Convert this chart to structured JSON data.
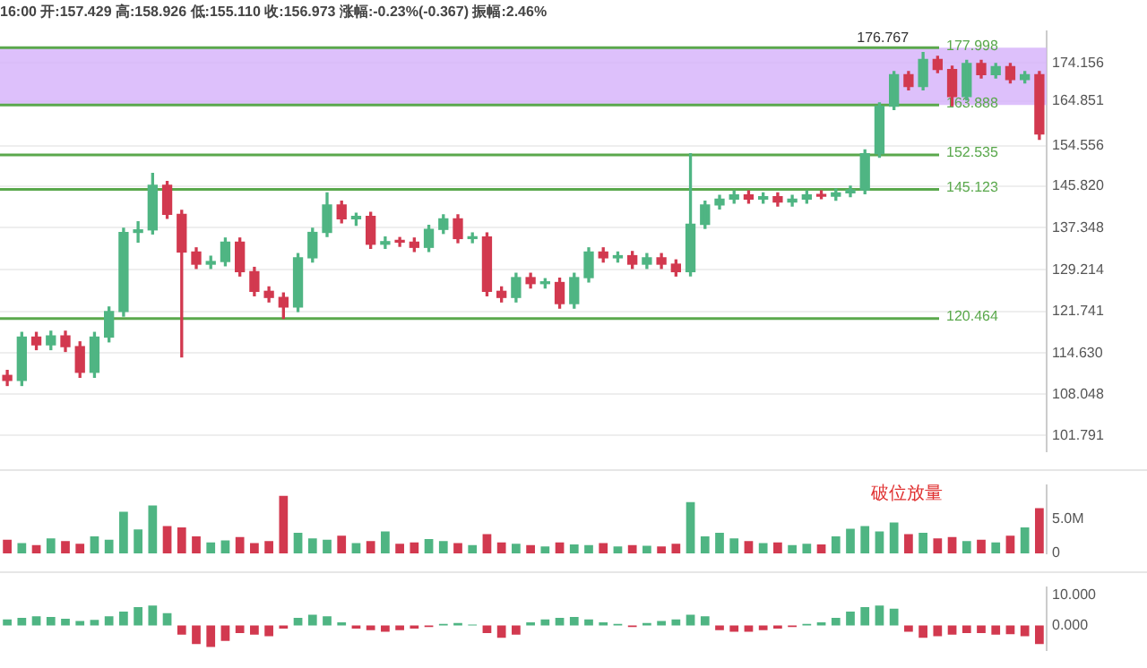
{
  "chart_data": [
    {
      "type": "candlestick",
      "title": "16:00 开:157.429 高:158.926 低:155.110 收:156.973 涨幅:-0.23%(-0.367) 振幅:2.46%",
      "categories": [
        null,
        null,
        null,
        null,
        null,
        null,
        null,
        null,
        null,
        null,
        null,
        null,
        null,
        null,
        null,
        null,
        null,
        null,
        null,
        null,
        null,
        null,
        null,
        null,
        null,
        null,
        null,
        null,
        null,
        null,
        null,
        null,
        null,
        null,
        null,
        null,
        null,
        null,
        null,
        null,
        null,
        null,
        null,
        null,
        null,
        null,
        null,
        null,
        null,
        null,
        null,
        null,
        null,
        null,
        null,
        null,
        null,
        null,
        null,
        null,
        null,
        null,
        null,
        null,
        null,
        null,
        null,
        null,
        null,
        null,
        null,
        null
      ],
      "ohlc": [
        [
          111.0,
          111.8,
          109.4,
          110.2
        ],
        [
          110.2,
          118.1,
          109.4,
          117.3
        ],
        [
          117.3,
          118.1,
          115.2,
          116.0
        ],
        [
          116.0,
          118.3,
          115.2,
          117.5
        ],
        [
          117.5,
          118.3,
          114.9,
          115.7
        ],
        [
          115.7,
          116.5,
          110.7,
          111.5
        ],
        [
          111.5,
          118.1,
          110.7,
          117.3
        ],
        [
          117.3,
          122.5,
          116.5,
          121.7
        ],
        [
          121.7,
          137.2,
          120.9,
          136.4
        ],
        [
          136.4,
          138.5,
          134.5,
          136.9
        ],
        [
          136.9,
          148.5,
          136.1,
          146.0
        ],
        [
          146.0,
          146.8,
          139.2,
          140.0
        ],
        [
          140.0,
          140.8,
          114.0,
          132.6
        ],
        [
          132.6,
          133.4,
          129.5,
          130.3
        ],
        [
          130.3,
          131.8,
          129.5,
          130.8
        ],
        [
          130.8,
          135.3,
          130.0,
          134.5
        ],
        [
          134.5,
          135.3,
          128.1,
          128.9
        ],
        [
          128.9,
          129.7,
          124.5,
          125.3
        ],
        [
          125.3,
          126.1,
          123.4,
          124.2
        ],
        [
          124.2,
          125.0,
          120.5,
          122.5
        ],
        [
          122.5,
          132.3,
          121.7,
          131.5
        ],
        [
          131.5,
          137.2,
          130.7,
          136.4
        ],
        [
          136.4,
          144.4,
          135.6,
          141.9
        ],
        [
          141.9,
          142.7,
          138.3,
          139.1
        ],
        [
          139.1,
          140.2,
          137.8,
          139.6
        ],
        [
          139.6,
          140.4,
          133.3,
          134.1
        ],
        [
          134.1,
          135.5,
          133.3,
          134.6
        ],
        [
          134.6,
          135.4,
          133.7,
          134.5
        ],
        [
          134.5,
          135.3,
          132.7,
          133.5
        ],
        [
          133.5,
          137.8,
          132.7,
          137.0
        ],
        [
          137.0,
          139.9,
          136.2,
          139.1
        ],
        [
          139.1,
          139.9,
          134.4,
          135.2
        ],
        [
          135.2,
          136.3,
          134.4,
          135.5
        ],
        [
          135.5,
          136.3,
          124.5,
          125.3
        ],
        [
          125.3,
          126.1,
          123.4,
          124.2
        ],
        [
          124.2,
          128.6,
          123.4,
          127.8
        ],
        [
          127.8,
          128.6,
          125.9,
          126.7
        ],
        [
          126.7,
          127.6,
          125.9,
          126.9
        ],
        [
          126.9,
          127.7,
          122.3,
          123.1
        ],
        [
          123.1,
          128.6,
          122.3,
          127.8
        ],
        [
          127.8,
          133.4,
          127.0,
          132.6
        ],
        [
          132.6,
          133.4,
          130.7,
          131.5
        ],
        [
          131.5,
          132.6,
          130.7,
          131.9
        ],
        [
          131.9,
          132.7,
          129.5,
          130.3
        ],
        [
          130.3,
          132.3,
          129.5,
          131.5
        ],
        [
          131.5,
          132.3,
          129.5,
          130.3
        ],
        [
          130.3,
          131.1,
          128.1,
          128.9
        ],
        [
          128.9,
          152.8,
          128.1,
          138.0
        ],
        [
          138.0,
          142.7,
          137.2,
          141.9
        ],
        [
          141.9,
          143.9,
          141.1,
          143.1
        ],
        [
          143.1,
          144.8,
          142.3,
          144.0
        ],
        [
          144.0,
          144.8,
          142.3,
          143.1
        ],
        [
          143.1,
          144.4,
          142.3,
          143.6
        ],
        [
          143.6,
          144.4,
          141.7,
          142.5
        ],
        [
          142.5,
          143.9,
          141.7,
          143.1
        ],
        [
          143.1,
          144.8,
          142.3,
          144.0
        ],
        [
          144.0,
          144.8,
          143.2,
          143.7
        ],
        [
          143.7,
          145.2,
          142.9,
          144.4
        ],
        [
          144.4,
          145.8,
          143.6,
          145.0
        ],
        [
          145.0,
          153.6,
          144.2,
          152.8
        ],
        [
          152.8,
          164.4,
          152.0,
          163.6
        ],
        [
          163.6,
          172.0,
          162.8,
          171.2
        ],
        [
          171.2,
          172.0,
          167.5,
          168.3
        ],
        [
          168.3,
          176.767,
          167.5,
          175.0
        ],
        [
          175.0,
          175.8,
          171.7,
          172.5
        ],
        [
          172.5,
          173.3,
          163.7,
          165.9
        ],
        [
          165.9,
          174.8,
          165.1,
          174.0
        ],
        [
          174.0,
          174.8,
          170.4,
          171.2
        ],
        [
          171.2,
          174.0,
          170.4,
          173.2
        ],
        [
          173.2,
          174.0,
          169.2,
          170.0
        ],
        [
          170.0,
          172.0,
          169.2,
          171.2
        ],
        [
          171.2,
          172.0,
          156.0,
          157.2
        ]
      ],
      "colors": [
        "#d2394f",
        "#4fb583",
        "#d2394f",
        "#4fb583",
        "#d2394f",
        "#d2394f",
        "#4fb583",
        "#4fb583",
        "#4fb583",
        "#4fb583",
        "#4fb583",
        "#d2394f",
        "#d2394f",
        "#d2394f",
        "#4fb583",
        "#4fb583",
        "#d2394f",
        "#d2394f",
        "#d2394f",
        "#d2394f",
        "#4fb583",
        "#4fb583",
        "#4fb583",
        "#d2394f",
        "#4fb583",
        "#d2394f",
        "#4fb583",
        "#d2394f",
        "#d2394f",
        "#4fb583",
        "#4fb583",
        "#d2394f",
        "#4fb583",
        "#d2394f",
        "#d2394f",
        "#4fb583",
        "#d2394f",
        "#4fb583",
        "#d2394f",
        "#4fb583",
        "#4fb583",
        "#d2394f",
        "#4fb583",
        "#d2394f",
        "#4fb583",
        "#d2394f",
        "#d2394f",
        "#4fb583",
        "#4fb583",
        "#4fb583",
        "#4fb583",
        "#d2394f",
        "#4fb583",
        "#d2394f",
        "#4fb583",
        "#4fb583",
        "#d2394f",
        "#4fb583",
        "#4fb583",
        "#4fb583",
        "#4fb583",
        "#4fb583",
        "#d2394f",
        "#4fb583",
        "#d2394f",
        "#d2394f",
        "#4fb583",
        "#d2394f",
        "#4fb583",
        "#d2394f",
        "#4fb583",
        "#d2394f"
      ],
      "log": true,
      "ylim": [
        99.5,
        182.2
      ],
      "yticks": [
        {
          "value": 101.791,
          "label": "101.791"
        },
        {
          "value": 108.048,
          "label": "108.048"
        },
        {
          "value": 114.63,
          "label": "114.630"
        },
        {
          "value": 121.741,
          "label": "121.741"
        },
        {
          "value": 129.214,
          "label": "129.214"
        },
        {
          "value": 137.348,
          "label": "137.348"
        },
        {
          "value": 145.82,
          "label": "145.820"
        },
        {
          "value": 154.556,
          "label": "154.556"
        },
        {
          "value": 164.851,
          "label": "164.851"
        },
        {
          "value": 174.156,
          "label": "174.156"
        }
      ],
      "tick_labels": "y",
      "grid": "y",
      "bands": [
        {
          "axis": "y",
          "from": 163.888,
          "to": 177.998,
          "color": "#d4b0fa"
        }
      ],
      "ref_lines": [
        {
          "axis": "y",
          "value": 177.998,
          "label": "177.998",
          "color": "#5aa84c"
        },
        {
          "axis": "y",
          "value": 163.888,
          "label": "163.888",
          "color": "#5aa84c"
        },
        {
          "axis": "y",
          "value": 152.535,
          "label": "152.535",
          "color": "#5aa84c"
        },
        {
          "axis": "y",
          "value": 145.123,
          "label": "145.123",
          "color": "#5aa84c"
        },
        {
          "axis": "y",
          "value": 120.464,
          "label": "120.464",
          "color": "#5aa84c"
        }
      ],
      "annotations": [
        {
          "text": "176.767",
          "y": 176.767
        }
      ]
    },
    {
      "type": "bar",
      "categories": [
        null,
        null,
        null,
        null,
        null,
        null,
        null,
        null,
        null,
        null,
        null,
        null,
        null,
        null,
        null,
        null,
        null,
        null,
        null,
        null,
        null,
        null,
        null,
        null,
        null,
        null,
        null,
        null,
        null,
        null,
        null,
        null,
        null,
        null,
        null,
        null,
        null,
        null,
        null,
        null,
        null,
        null,
        null,
        null,
        null,
        null,
        null,
        null,
        null,
        null,
        null,
        null,
        null,
        null,
        null,
        null,
        null,
        null,
        null,
        null,
        null,
        null,
        null,
        null,
        null,
        null,
        null,
        null,
        null,
        null,
        null,
        null
      ],
      "values": [
        2.0,
        1.5,
        1.2,
        2.2,
        1.8,
        1.4,
        2.5,
        2.0,
        6.1,
        3.5,
        7.0,
        4.0,
        3.8,
        2.5,
        1.6,
        1.9,
        2.4,
        1.5,
        1.8,
        8.4,
        3.0,
        2.2,
        2.0,
        2.6,
        1.5,
        1.8,
        3.2,
        1.4,
        1.6,
        2.1,
        1.8,
        1.5,
        1.2,
        2.8,
        1.6,
        1.4,
        1.2,
        1.0,
        1.6,
        1.3,
        1.2,
        1.5,
        1.0,
        1.2,
        1.1,
        1.0,
        1.4,
        7.5,
        2.5,
        3.0,
        2.2,
        1.8,
        1.5,
        1.6,
        1.2,
        1.4,
        1.3,
        2.5,
        3.6,
        4.0,
        3.2,
        4.5,
        2.8,
        3.0,
        2.2,
        2.4,
        1.8,
        2.0,
        1.6,
        2.6,
        3.8,
        6.6
      ],
      "colors": [
        "#d2394f",
        "#4fb583",
        "#d2394f",
        "#4fb583",
        "#d2394f",
        "#d2394f",
        "#4fb583",
        "#4fb583",
        "#4fb583",
        "#4fb583",
        "#4fb583",
        "#d2394f",
        "#d2394f",
        "#d2394f",
        "#4fb583",
        "#4fb583",
        "#d2394f",
        "#d2394f",
        "#d2394f",
        "#d2394f",
        "#4fb583",
        "#4fb583",
        "#4fb583",
        "#d2394f",
        "#4fb583",
        "#d2394f",
        "#4fb583",
        "#d2394f",
        "#d2394f",
        "#4fb583",
        "#4fb583",
        "#d2394f",
        "#4fb583",
        "#d2394f",
        "#d2394f",
        "#4fb583",
        "#d2394f",
        "#4fb583",
        "#d2394f",
        "#4fb583",
        "#4fb583",
        "#d2394f",
        "#4fb583",
        "#d2394f",
        "#4fb583",
        "#d2394f",
        "#d2394f",
        "#4fb583",
        "#4fb583",
        "#4fb583",
        "#4fb583",
        "#d2394f",
        "#4fb583",
        "#d2394f",
        "#4fb583",
        "#4fb583",
        "#d2394f",
        "#4fb583",
        "#4fb583",
        "#4fb583",
        "#4fb583",
        "#4fb583",
        "#d2394f",
        "#4fb583",
        "#d2394f",
        "#d2394f",
        "#4fb583",
        "#d2394f",
        "#4fb583",
        "#d2394f",
        "#4fb583",
        "#d2394f"
      ],
      "ylim": [
        0,
        10
      ],
      "yticks": [
        {
          "value": 0,
          "label": "0"
        },
        {
          "value": 5,
          "label": "5.0M"
        }
      ],
      "tick_labels": "y",
      "annotations": [
        "破位放量"
      ]
    },
    {
      "type": "bar",
      "categories": [
        null,
        null,
        null,
        null,
        null,
        null,
        null,
        null,
        null,
        null,
        null,
        null,
        null,
        null,
        null,
        null,
        null,
        null,
        null,
        null,
        null,
        null,
        null,
        null,
        null,
        null,
        null,
        null,
        null,
        null,
        null,
        null,
        null,
        null,
        null,
        null,
        null,
        null,
        null,
        null,
        null,
        null,
        null,
        null,
        null,
        null,
        null,
        null,
        null,
        null,
        null,
        null,
        null,
        null,
        null,
        null,
        null,
        null,
        null,
        null,
        null,
        null,
        null,
        null,
        null,
        null,
        null,
        null,
        null,
        null,
        null,
        null
      ],
      "values": [
        2,
        2.5,
        3,
        2.8,
        2.2,
        1.5,
        1.8,
        3,
        4.5,
        6,
        6.5,
        4,
        -3,
        -6,
        -7,
        -5,
        -2.5,
        -3,
        -3.5,
        -1,
        2.5,
        3.5,
        3,
        1,
        -1,
        -1.5,
        -2,
        -1.5,
        -1,
        -0.5,
        0.5,
        0.8,
        0.3,
        -2.5,
        -4,
        -3,
        1,
        2,
        2.5,
        2.8,
        2,
        1,
        0.5,
        -0.5,
        0.8,
        1.5,
        2,
        3.5,
        3,
        -1.5,
        -2,
        -2,
        -1.5,
        -1,
        -0.5,
        0.5,
        1,
        2.5,
        4.5,
        6,
        6.5,
        5.5,
        -2,
        -4,
        -3.5,
        -3,
        -2.5,
        -2.5,
        -3,
        -2.8,
        -3.5,
        -6
      ],
      "colors": [
        "#4fb583",
        "#4fb583",
        "#4fb583",
        "#4fb583",
        "#4fb583",
        "#4fb583",
        "#4fb583",
        "#4fb583",
        "#4fb583",
        "#4fb583",
        "#4fb583",
        "#4fb583",
        "#d2394f",
        "#d2394f",
        "#d2394f",
        "#d2394f",
        "#d2394f",
        "#d2394f",
        "#d2394f",
        "#d2394f",
        "#4fb583",
        "#4fb583",
        "#4fb583",
        "#4fb583",
        "#d2394f",
        "#d2394f",
        "#d2394f",
        "#d2394f",
        "#d2394f",
        "#d2394f",
        "#4fb583",
        "#4fb583",
        "#4fb583",
        "#d2394f",
        "#d2394f",
        "#d2394f",
        "#4fb583",
        "#4fb583",
        "#4fb583",
        "#4fb583",
        "#4fb583",
        "#4fb583",
        "#4fb583",
        "#d2394f",
        "#4fb583",
        "#4fb583",
        "#4fb583",
        "#4fb583",
        "#4fb583",
        "#d2394f",
        "#d2394f",
        "#d2394f",
        "#d2394f",
        "#d2394f",
        "#d2394f",
        "#4fb583",
        "#4fb583",
        "#4fb583",
        "#4fb583",
        "#4fb583",
        "#4fb583",
        "#4fb583",
        "#d2394f",
        "#d2394f",
        "#d2394f",
        "#d2394f",
        "#d2394f",
        "#d2394f",
        "#d2394f",
        "#d2394f",
        "#d2394f",
        "#d2394f"
      ],
      "ylim": [
        -8,
        12.5
      ],
      "yticks": [
        {
          "value": 0,
          "label": "0.000"
        },
        {
          "value": 10,
          "label": "10.000"
        }
      ],
      "tick_labels": "y"
    }
  ]
}
